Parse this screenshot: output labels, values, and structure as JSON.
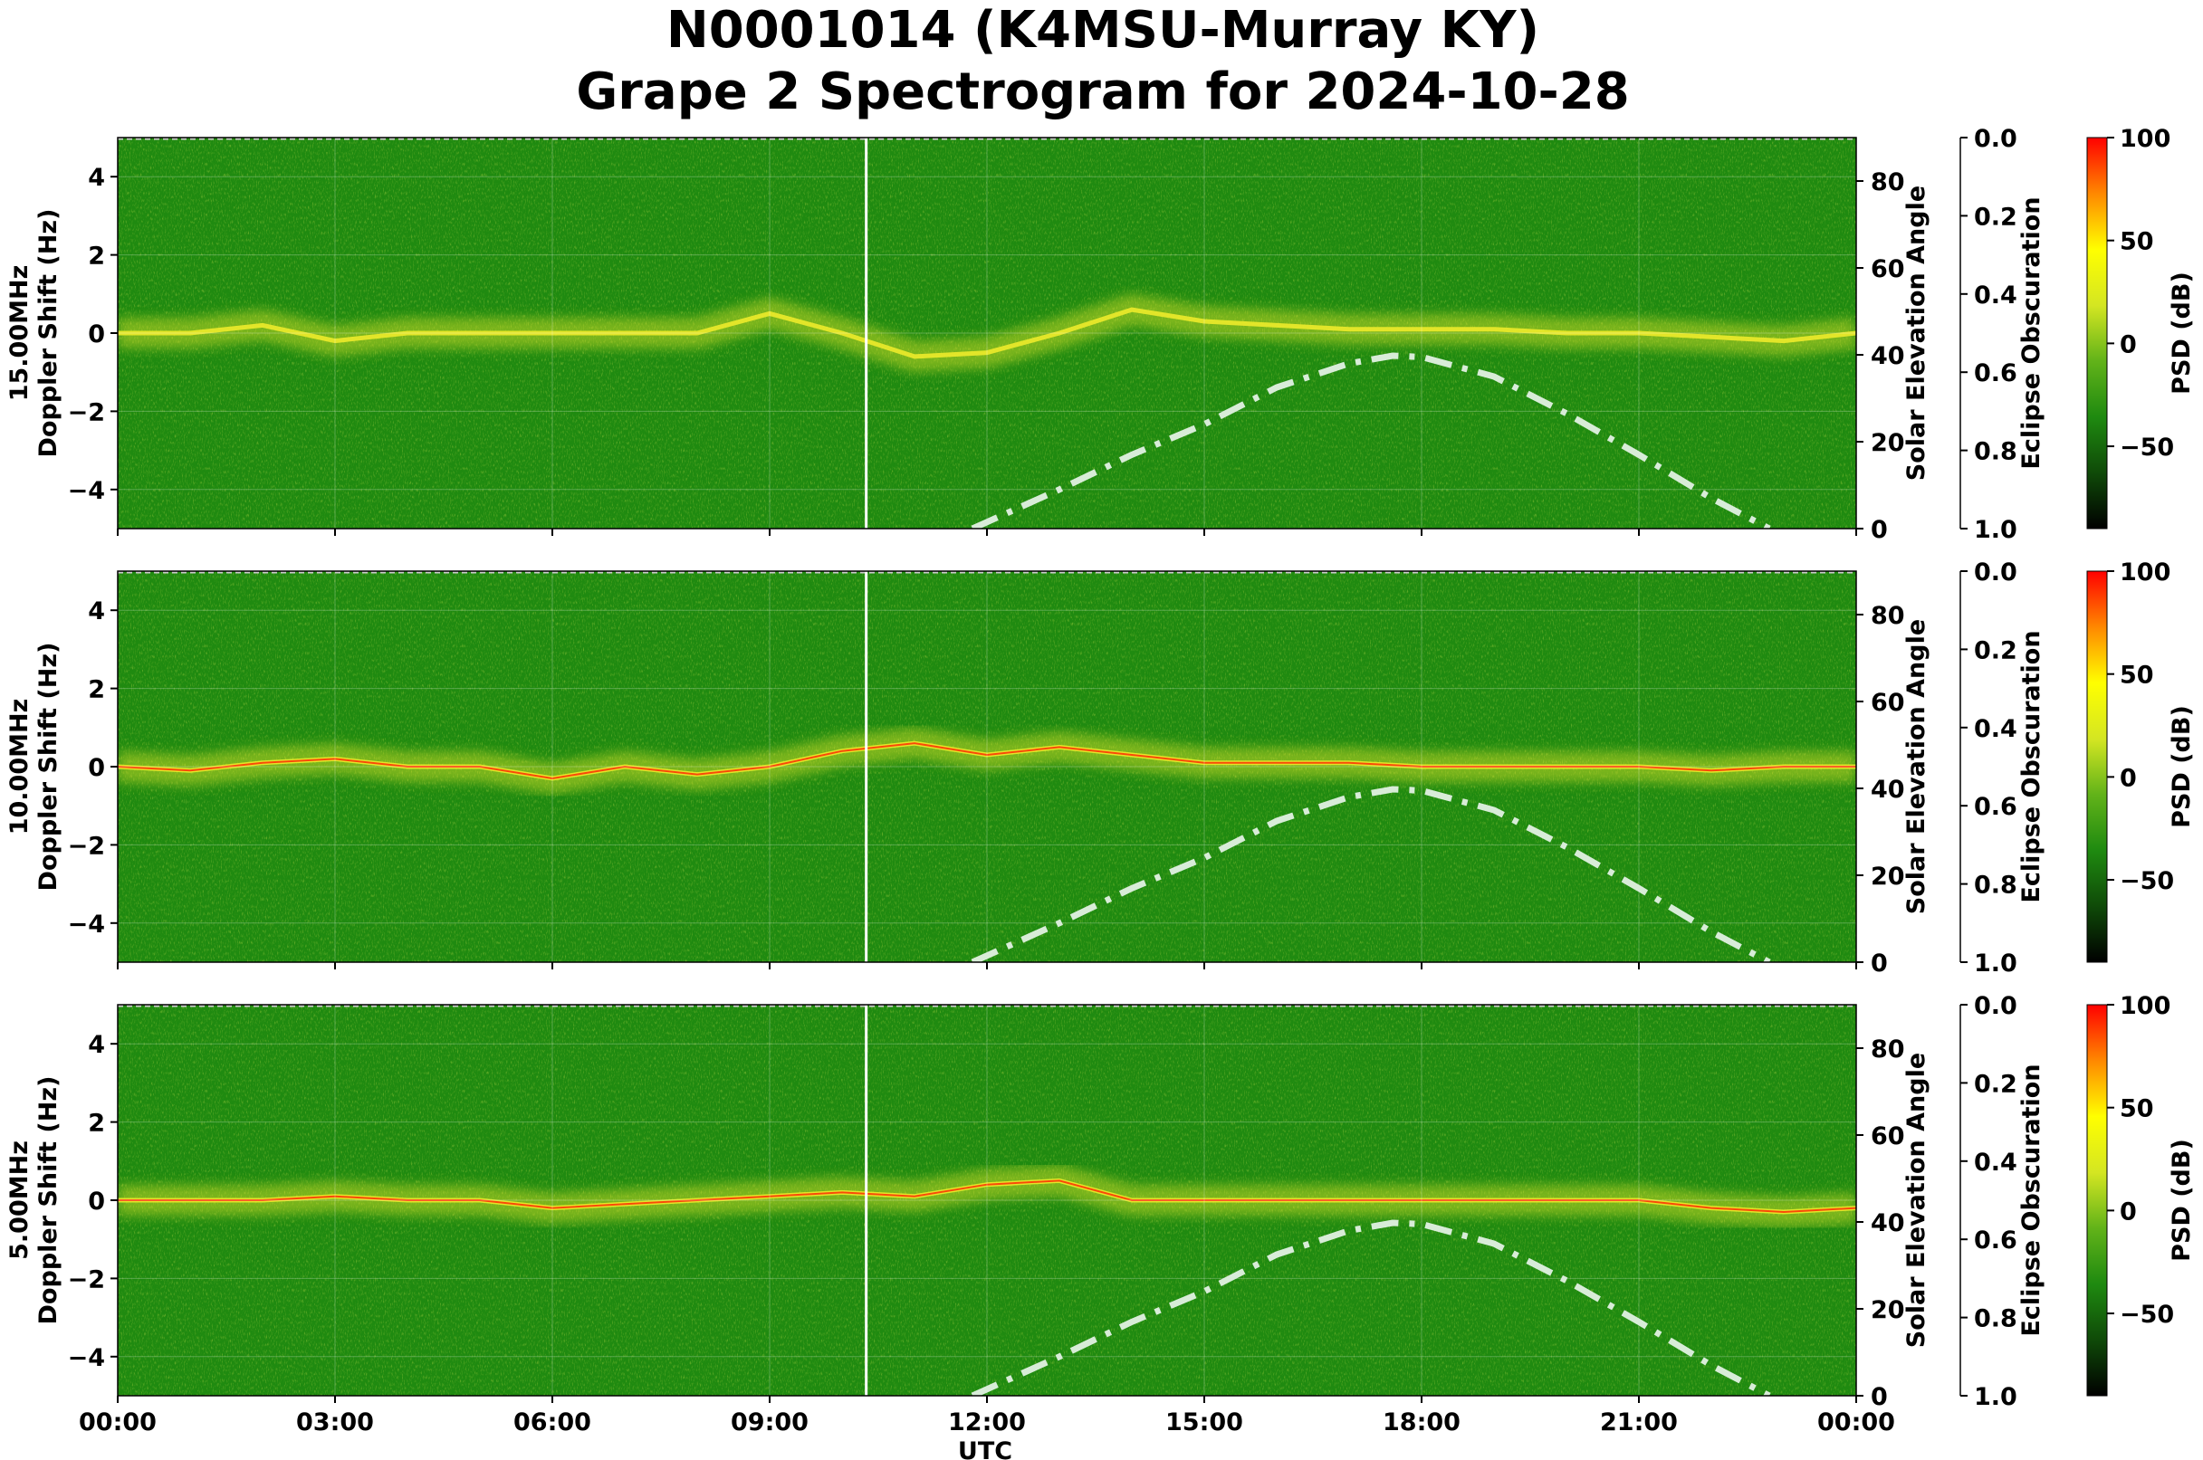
{
  "title_line1": "N0001014 (K4MSU-Murray KY)",
  "title_line2": "Grape 2 Spectrogram for 2024-10-28",
  "colors": {
    "background_green": "#1f8a10",
    "signal_yellow": "#e8e82a",
    "signal_red": "#ff2200",
    "solar_curve": "#d8ecd8",
    "colormap": [
      "#000000",
      "#0f4a08",
      "#1f8a10",
      "#62b319",
      "#d4e622",
      "#ffff00",
      "#ff8800",
      "#ff0000"
    ]
  },
  "chart_data": [
    {
      "type": "heatmap",
      "panel": "15.00MHz",
      "ylabel_line1": "15.00MHz",
      "ylabel_line2": "Doppler Shift (Hz)",
      "xlabel": "",
      "ylim": [
        -5,
        5
      ],
      "yticks": [
        "4",
        "2",
        "0",
        "−2",
        "−4"
      ],
      "secondary_axis": {
        "label": "Solar Elevation Angle",
        "ylim": [
          0,
          90
        ],
        "ticks": [
          "0",
          "20",
          "40",
          "60",
          "80"
        ]
      },
      "eclipse_axis": {
        "label": "Eclipse Obscuration",
        "ylim": [
          1.0,
          0.0
        ],
        "ticks": [
          "0.0",
          "0.2",
          "0.4",
          "0.6",
          "0.8",
          "1.0"
        ]
      },
      "colorbar": {
        "label": "PSD (dB)",
        "range": [
          -90,
          100
        ],
        "ticks": [
          "100",
          "50",
          "0",
          "−50"
        ]
      },
      "main_trace_hz": [
        0.0,
        0.0,
        0.2,
        -0.2,
        0.0,
        0.0,
        0.0,
        0.0,
        0.0,
        0.5,
        0.0,
        -0.6,
        -0.5,
        0.0,
        0.6,
        0.3,
        0.2,
        0.1,
        0.1,
        0.1,
        0.0,
        0.0,
        -0.1,
        -0.2,
        0.0
      ],
      "solar_elevation_deg": [
        [
          11.8,
          0
        ],
        [
          12,
          1.5
        ],
        [
          13,
          9
        ],
        [
          14,
          17
        ],
        [
          15,
          24
        ],
        [
          16,
          32.5
        ],
        [
          17,
          38
        ],
        [
          17.6,
          39.8
        ],
        [
          18,
          39.5
        ],
        [
          19,
          35
        ],
        [
          20,
          26.5
        ],
        [
          21,
          17
        ],
        [
          22,
          7
        ],
        [
          22.8,
          0
        ]
      ],
      "vertical_marker_utc": "10:20"
    },
    {
      "type": "heatmap",
      "panel": "10.00MHz",
      "ylabel_line1": "10.00MHz",
      "ylabel_line2": "Doppler Shift (Hz)",
      "xlabel": "",
      "ylim": [
        -5,
        5
      ],
      "yticks": [
        "4",
        "2",
        "0",
        "−2",
        "−4"
      ],
      "secondary_axis": {
        "label": "Solar Elevation Angle",
        "ylim": [
          0,
          90
        ],
        "ticks": [
          "0",
          "20",
          "40",
          "60",
          "80"
        ]
      },
      "eclipse_axis": {
        "label": "Eclipse Obscuration",
        "ylim": [
          1.0,
          0.0
        ],
        "ticks": [
          "0.0",
          "0.2",
          "0.4",
          "0.6",
          "0.8",
          "1.0"
        ]
      },
      "colorbar": {
        "label": "PSD (dB)",
        "range": [
          -90,
          100
        ],
        "ticks": [
          "100",
          "50",
          "0",
          "−50"
        ]
      },
      "main_trace_hz": [
        0.0,
        -0.1,
        0.1,
        0.2,
        0.0,
        0.0,
        -0.3,
        0.0,
        -0.2,
        0.0,
        0.4,
        0.6,
        0.3,
        0.5,
        0.3,
        0.1,
        0.1,
        0.1,
        0.0,
        0.0,
        0.0,
        0.0,
        -0.1,
        0.0,
        0.0
      ],
      "solar_elevation_deg": [
        [
          11.8,
          0
        ],
        [
          12,
          1.5
        ],
        [
          13,
          9
        ],
        [
          14,
          17
        ],
        [
          15,
          24
        ],
        [
          16,
          32.5
        ],
        [
          17,
          38
        ],
        [
          17.6,
          39.8
        ],
        [
          18,
          39.5
        ],
        [
          19,
          35
        ],
        [
          20,
          26.5
        ],
        [
          21,
          17
        ],
        [
          22,
          7
        ],
        [
          22.8,
          0
        ]
      ],
      "vertical_marker_utc": "10:20"
    },
    {
      "type": "heatmap",
      "panel": "5.00MHz",
      "ylabel_line1": "5.00MHz",
      "ylabel_line2": "Doppler Shift (Hz)",
      "xlabel": "UTC",
      "ylim": [
        -5,
        5
      ],
      "yticks": [
        "4",
        "2",
        "0",
        "−2",
        "−4"
      ],
      "xticks": [
        "00:00",
        "03:00",
        "06:00",
        "09:00",
        "12:00",
        "15:00",
        "18:00",
        "21:00",
        "00:00"
      ],
      "secondary_axis": {
        "label": "Solar Elevation Angle",
        "ylim": [
          0,
          90
        ],
        "ticks": [
          "0",
          "20",
          "40",
          "60",
          "80"
        ]
      },
      "eclipse_axis": {
        "label": "Eclipse Obscuration",
        "ylim": [
          1.0,
          0.0
        ],
        "ticks": [
          "0.0",
          "0.2",
          "0.4",
          "0.6",
          "0.8",
          "1.0"
        ]
      },
      "colorbar": {
        "label": "PSD (dB)",
        "range": [
          -90,
          100
        ],
        "ticks": [
          "100",
          "50",
          "0",
          "−50"
        ]
      },
      "main_trace_hz": [
        0.0,
        0.0,
        0.0,
        0.1,
        0.0,
        0.0,
        -0.2,
        -0.1,
        0.0,
        0.1,
        0.2,
        0.1,
        0.4,
        0.5,
        0.0,
        0.0,
        0.0,
        0.0,
        0.0,
        0.0,
        0.0,
        0.0,
        -0.2,
        -0.3,
        -0.2
      ],
      "solar_elevation_deg": [
        [
          11.8,
          0
        ],
        [
          12,
          1.5
        ],
        [
          13,
          9
        ],
        [
          14,
          17
        ],
        [
          15,
          24
        ],
        [
          16,
          32.5
        ],
        [
          17,
          38
        ],
        [
          17.6,
          39.8
        ],
        [
          18,
          39.5
        ],
        [
          19,
          35
        ],
        [
          20,
          26.5
        ],
        [
          21,
          17
        ],
        [
          22,
          7
        ],
        [
          22.8,
          0
        ]
      ],
      "vertical_marker_utc": "10:20"
    }
  ]
}
